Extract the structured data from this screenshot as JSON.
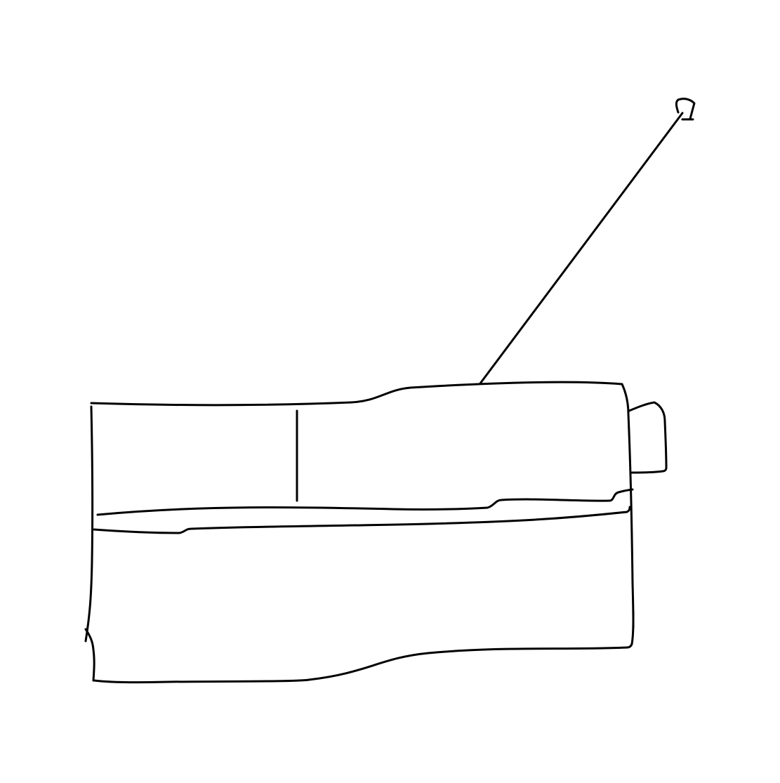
{
  "drawing": {
    "subject_icon": "radio-icon",
    "stroke_color": "#000000",
    "background_color": "#ffffff"
  }
}
